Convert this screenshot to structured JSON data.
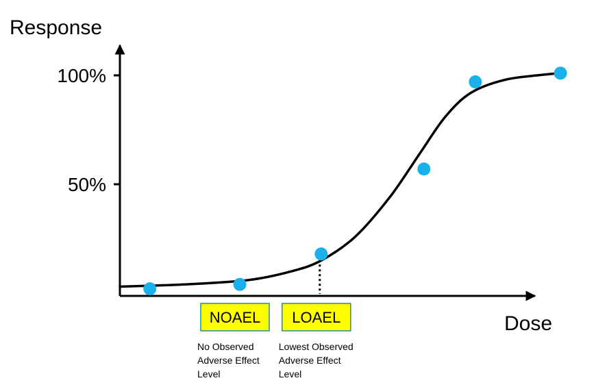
{
  "chart_data": {
    "type": "scatter",
    "title": "",
    "ylabel": "Response",
    "xlabel": "Dose",
    "y_ticks": [
      {
        "value": 50,
        "label": "50%"
      },
      {
        "value": 100,
        "label": "100%"
      }
    ],
    "ylim": [
      0,
      105
    ],
    "xlim": [
      0,
      10
    ],
    "grid": false,
    "legend": "none",
    "points": [
      {
        "x": 0.7,
        "y": 2
      },
      {
        "x": 2.8,
        "y": 4
      },
      {
        "x": 4.7,
        "y": 18
      },
      {
        "x": 7.1,
        "y": 57
      },
      {
        "x": 8.3,
        "y": 97
      },
      {
        "x": 10.5,
        "y": 101
      }
    ],
    "curve": [
      {
        "x": 0.0,
        "y": 3
      },
      {
        "x": 1.5,
        "y": 4
      },
      {
        "x": 3.0,
        "y": 6
      },
      {
        "x": 4.0,
        "y": 10
      },
      {
        "x": 4.7,
        "y": 15
      },
      {
        "x": 5.5,
        "y": 26
      },
      {
        "x": 6.3,
        "y": 44
      },
      {
        "x": 7.0,
        "y": 64
      },
      {
        "x": 7.6,
        "y": 81
      },
      {
        "x": 8.2,
        "y": 92
      },
      {
        "x": 9.0,
        "y": 98
      },
      {
        "x": 10.0,
        "y": 100.5
      },
      {
        "x": 10.3,
        "y": 101
      }
    ],
    "threshold_markers": [
      {
        "x": 2.8,
        "label": "NOAEL",
        "description": [
          "No Observed",
          "Adverse Effect",
          "Level"
        ],
        "dotted_line": false
      },
      {
        "x": 4.7,
        "label": "LOAEL",
        "description": [
          "Lowest Observed",
          "Adverse Effect",
          "Level"
        ],
        "dotted_line": true
      }
    ],
    "colors": {
      "point": "#1ab0eb",
      "curve": "#000000",
      "axis": "#000000",
      "box_fill": "#ffff00",
      "box_border": "#1f8aa8"
    }
  }
}
